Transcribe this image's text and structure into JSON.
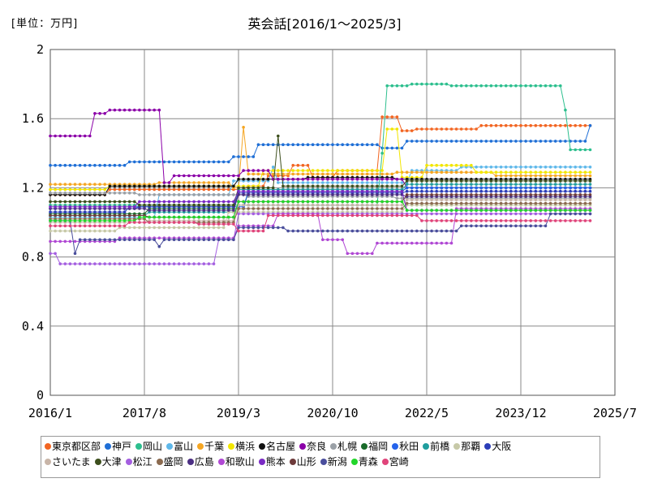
{
  "chart_data": {
    "type": "line",
    "title": "英会話[2016/1～2025/3]",
    "unit_label": "[単位：万円]",
    "xlabel": "",
    "ylabel": "",
    "x_tick_labels": [
      "2016/1",
      "2017/8",
      "2019/3",
      "2020/10",
      "2022/5",
      "2023/12",
      "2025/7"
    ],
    "y_tick_labels": [
      "0",
      "0.4",
      "0.8",
      "1.2",
      "1.6",
      "2"
    ],
    "ylim": [
      0,
      2
    ],
    "grid": true,
    "legend_position": "bottom",
    "series": [
      {
        "name": "東京都区部",
        "color": "#f26522",
        "segments": [
          [
            0,
            1.16
          ],
          [
            12,
            1.19
          ],
          [
            40,
            1.21
          ],
          [
            44,
            1.27
          ],
          [
            49,
            1.33
          ],
          [
            53,
            1.26
          ],
          [
            58,
            1.3
          ],
          [
            67,
            1.61
          ],
          [
            71,
            1.53
          ],
          [
            74,
            1.54
          ],
          [
            87,
            1.56
          ],
          [
            110,
            1.57
          ]
        ]
      },
      {
        "name": "神戸",
        "color": "#1f6fd6",
        "segments": [
          [
            0,
            1.33
          ],
          [
            16,
            1.35
          ],
          [
            37,
            1.38
          ],
          [
            42,
            1.45
          ],
          [
            67,
            1.43
          ],
          [
            72,
            1.47
          ],
          [
            109,
            1.56
          ],
          [
            110,
            1.56
          ]
        ]
      },
      {
        "name": "岡山",
        "color": "#2dbf8e",
        "segments": [
          [
            0,
            1.1
          ],
          [
            67,
            1.4
          ],
          [
            68,
            1.79
          ],
          [
            73,
            1.8
          ],
          [
            81,
            1.79
          ],
          [
            104,
            1.65
          ],
          [
            105,
            1.42
          ],
          [
            110,
            1.42
          ]
        ]
      },
      {
        "name": "富山",
        "color": "#5fb8ea",
        "segments": [
          [
            0,
            1.03
          ],
          [
            22,
            1.16
          ],
          [
            37,
            1.24
          ],
          [
            45,
            1.32
          ],
          [
            46,
            1.23
          ],
          [
            73,
            1.3
          ],
          [
            83,
            1.32
          ],
          [
            110,
            1.32
          ]
        ]
      },
      {
        "name": "千葉",
        "color": "#f5a623",
        "segments": [
          [
            0,
            1.22
          ],
          [
            22,
            1.23
          ],
          [
            37,
            1.2
          ],
          [
            39,
            1.55
          ],
          [
            40,
            1.28
          ],
          [
            70,
            1.29
          ],
          [
            90,
            1.27
          ],
          [
            110,
            1.27
          ]
        ]
      },
      {
        "name": "横浜",
        "color": "#f2e600",
        "segments": [
          [
            0,
            1.19
          ],
          [
            12,
            1.21
          ],
          [
            37,
            1.21
          ],
          [
            43,
            1.3
          ],
          [
            68,
            1.54
          ],
          [
            71,
            1.26
          ],
          [
            76,
            1.33
          ],
          [
            86,
            1.29
          ],
          [
            110,
            1.29
          ]
        ]
      },
      {
        "name": "名古屋",
        "color": "#111111",
        "segments": [
          [
            0,
            1.16
          ],
          [
            12,
            1.21
          ],
          [
            38,
            1.25
          ],
          [
            52,
            1.26
          ],
          [
            70,
            1.25
          ],
          [
            110,
            1.25
          ]
        ]
      },
      {
        "name": "奈良",
        "color": "#8b00a8",
        "segments": [
          [
            0,
            1.5
          ],
          [
            9,
            1.63
          ],
          [
            12,
            1.65
          ],
          [
            23,
            1.23
          ],
          [
            25,
            1.27
          ],
          [
            39,
            1.3
          ],
          [
            45,
            1.25
          ],
          [
            72,
            1.2
          ],
          [
            110,
            1.2
          ]
        ]
      },
      {
        "name": "札幌",
        "color": "#9aa0a6",
        "segments": [
          [
            0,
            1.17
          ],
          [
            18,
            1.16
          ],
          [
            40,
            1.15
          ],
          [
            70,
            1.14
          ],
          [
            110,
            1.14
          ]
        ]
      },
      {
        "name": "福岡",
        "color": "#1a6b2a",
        "segments": [
          [
            0,
            1.05
          ],
          [
            20,
            1.08
          ],
          [
            40,
            1.18
          ],
          [
            72,
            1.2
          ],
          [
            110,
            1.2
          ]
        ]
      },
      {
        "name": "秋田",
        "color": "#2563eb",
        "segments": [
          [
            0,
            1.08
          ],
          [
            18,
            1.09
          ],
          [
            40,
            1.18
          ],
          [
            72,
            1.2
          ],
          [
            110,
            1.22
          ]
        ]
      },
      {
        "name": "前橋",
        "color": "#1f9e9e",
        "segments": [
          [
            0,
            1.04
          ],
          [
            20,
            1.06
          ],
          [
            38,
            1.19
          ],
          [
            72,
            1.22
          ],
          [
            110,
            1.22
          ]
        ]
      },
      {
        "name": "那覇",
        "color": "#c7c9a8",
        "segments": [
          [
            0,
            0.95
          ],
          [
            14,
            0.97
          ],
          [
            36,
            1.06
          ],
          [
            72,
            1.1
          ],
          [
            110,
            1.1
          ]
        ]
      },
      {
        "name": "大阪",
        "color": "#2b3db8",
        "segments": [
          [
            0,
            1.06
          ],
          [
            16,
            1.09
          ],
          [
            38,
            1.17
          ],
          [
            72,
            1.18
          ],
          [
            110,
            1.18
          ]
        ]
      },
      {
        "name": "さいたま",
        "color": "#c8b5a8",
        "segments": [
          [
            0,
            1.0
          ],
          [
            20,
            1.01
          ],
          [
            38,
            1.1
          ],
          [
            72,
            1.13
          ],
          [
            110,
            1.13
          ]
        ]
      },
      {
        "name": "大津",
        "color": "#3d4f1d",
        "segments": [
          [
            0,
            1.12
          ],
          [
            18,
            1.1
          ],
          [
            38,
            1.2
          ],
          [
            46,
            1.5
          ],
          [
            47,
            1.21
          ],
          [
            72,
            1.24
          ],
          [
            110,
            1.24
          ]
        ]
      },
      {
        "name": "松江",
        "color": "#a45ee0",
        "segments": [
          [
            0,
            0.82
          ],
          [
            2,
            0.76
          ],
          [
            13,
            0.76
          ],
          [
            31,
            0.76
          ],
          [
            34,
            0.9
          ],
          [
            38,
            1.05
          ],
          [
            72,
            1.05
          ],
          [
            110,
            1.05
          ]
        ]
      },
      {
        "name": "盛岡",
        "color": "#8b6a4f",
        "segments": [
          [
            0,
            1.02
          ],
          [
            20,
            1.0
          ],
          [
            38,
            1.08
          ],
          [
            72,
            1.11
          ],
          [
            110,
            1.11
          ]
        ]
      },
      {
        "name": "広島",
        "color": "#4b2e83",
        "segments": [
          [
            0,
            1.08
          ],
          [
            20,
            1.07
          ],
          [
            38,
            1.16
          ],
          [
            72,
            1.15
          ],
          [
            110,
            1.15
          ]
        ]
      },
      {
        "name": "和歌山",
        "color": "#b048d4",
        "segments": [
          [
            0,
            0.89
          ],
          [
            14,
            0.91
          ],
          [
            38,
            0.98
          ],
          [
            46,
            1.05
          ],
          [
            55,
            0.9
          ],
          [
            60,
            0.82
          ],
          [
            66,
            0.88
          ],
          [
            80,
            0.88
          ],
          [
            82,
            1.08
          ],
          [
            110,
            1.08
          ]
        ]
      },
      {
        "name": "熊本",
        "color": "#7a2ac4",
        "segments": [
          [
            0,
            1.09
          ],
          [
            18,
            1.12
          ],
          [
            38,
            1.18
          ],
          [
            72,
            1.07
          ],
          [
            110,
            1.07
          ]
        ]
      },
      {
        "name": "山形",
        "color": "#6e3b3b",
        "segments": [
          [
            0,
            1.04
          ],
          [
            20,
            1.03
          ],
          [
            38,
            1.12
          ],
          [
            72,
            1.16
          ],
          [
            110,
            1.16
          ]
        ]
      },
      {
        "name": "新潟",
        "color": "#4a4e9c",
        "segments": [
          [
            0,
            1.01
          ],
          [
            5,
            0.82
          ],
          [
            6,
            0.9
          ],
          [
            22,
            0.86
          ],
          [
            23,
            0.9
          ],
          [
            38,
            0.97
          ],
          [
            48,
            0.95
          ],
          [
            72,
            0.95
          ],
          [
            83,
            0.98
          ],
          [
            101,
            1.05
          ],
          [
            110,
            1.05
          ]
        ]
      },
      {
        "name": "青森",
        "color": "#22d62a",
        "segments": [
          [
            0,
            1.01
          ],
          [
            18,
            1.03
          ],
          [
            38,
            1.12
          ],
          [
            72,
            1.07
          ],
          [
            110,
            1.07
          ]
        ]
      },
      {
        "name": "宮崎",
        "color": "#e0447a",
        "segments": [
          [
            0,
            0.98
          ],
          [
            16,
            1.0
          ],
          [
            30,
            0.99
          ],
          [
            38,
            0.95
          ],
          [
            44,
            1.04
          ],
          [
            60,
            1.04
          ],
          [
            75,
            1.01
          ],
          [
            110,
            1.01
          ]
        ]
      }
    ]
  }
}
